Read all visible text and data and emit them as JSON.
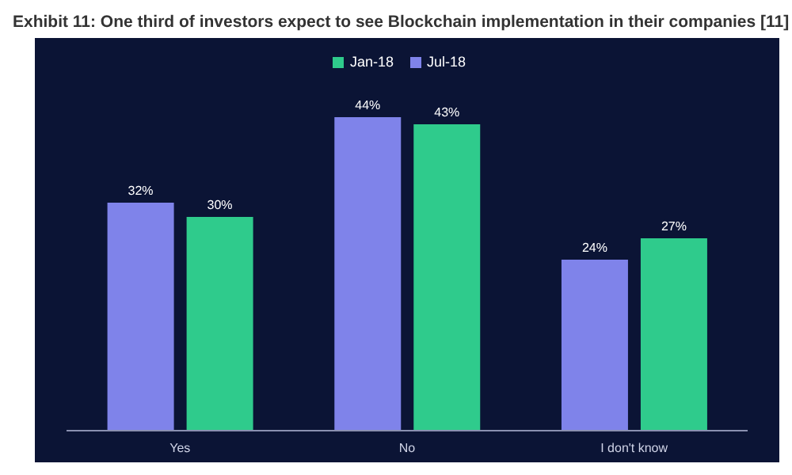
{
  "chart_data": {
    "type": "bar",
    "title": "Exhibit 11: One third of investors expect to see Blockchain implementation in their companies [11]",
    "categories": [
      "Yes",
      "No",
      "I don't know"
    ],
    "series": [
      {
        "name": "Jul-18",
        "color": "#7f83ea",
        "values": [
          32,
          44,
          24
        ],
        "value_labels": [
          "32%",
          "44%",
          "24%"
        ]
      },
      {
        "name": "Jan-18",
        "color": "#2fcb8c",
        "values": [
          30,
          43,
          27
        ],
        "value_labels": [
          "30%",
          "43%",
          "27%"
        ]
      }
    ],
    "legend": "top",
    "tick_labels": "x",
    "grid": false
  }
}
